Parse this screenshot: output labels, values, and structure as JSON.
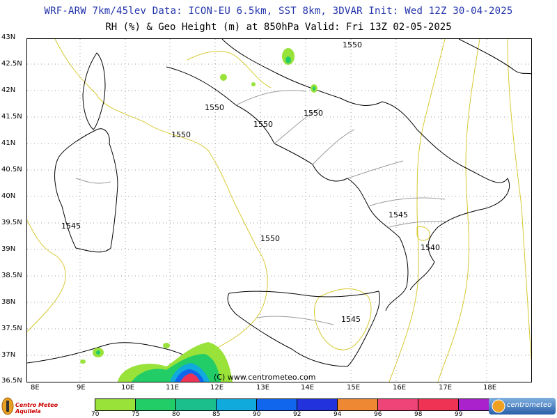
{
  "title_line1": "WRF-ARW 7km/45lev  Data: ICON-EU 6.5km, SST 8km, 3DVAR  Init: Wed 12Z 30-04-2025",
  "title_line2": "RH (%) & Geo Height (m) at 850hPa  Valid: Fri 13Z 02-05-2025",
  "lat_labels": [
    "43N",
    "42.5N",
    "42N",
    "41.5N",
    "41N",
    "40.5N",
    "40N",
    "39.5N",
    "39N",
    "38.5N",
    "38N",
    "37.5N",
    "37N",
    "36.5N"
  ],
  "lon_labels": [
    "8E",
    "9E",
    "10E",
    "11E",
    "12E",
    "13E",
    "14E",
    "15E",
    "16E",
    "17E",
    "18E"
  ],
  "contour_labels": [
    {
      "text": "1550"
    },
    {
      "text": "1550"
    },
    {
      "text": "1550"
    },
    {
      "text": "1550"
    },
    {
      "text": "1550"
    },
    {
      "text": "1550"
    },
    {
      "text": "1545"
    },
    {
      "text": "1545"
    },
    {
      "text": "1540"
    },
    {
      "text": "1545"
    }
  ],
  "copyright": "(C) www.centrometeo.com",
  "logo_left_text": "Centro Meteo Aquileia",
  "logo_right_text": "centrometeo",
  "colorbar": {
    "labels": [
      "70",
      "75",
      "80",
      "85",
      "90",
      "92",
      "94",
      "96",
      "98",
      "99"
    ],
    "colors": [
      "#99e23a",
      "#22cc66",
      "#1abf8c",
      "#11aadd",
      "#1166ee",
      "#2233dd",
      "#ee8833",
      "#ee4477",
      "#ee3355",
      "#aa22cc"
    ]
  }
}
